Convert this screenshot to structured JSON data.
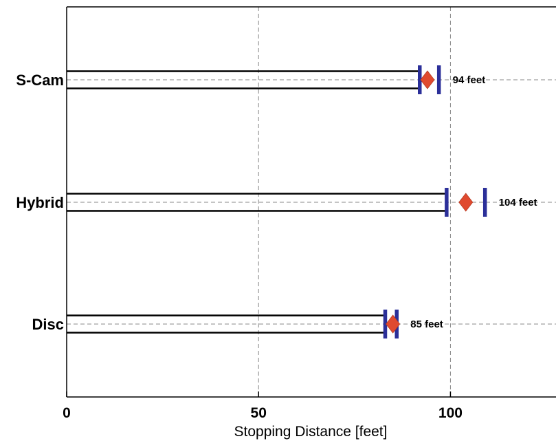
{
  "chart_data": {
    "type": "bar",
    "orientation": "horizontal",
    "categories": [
      "S-Cam",
      "Hybrid",
      "Disc"
    ],
    "values": [
      94,
      104,
      85
    ],
    "interval_low": [
      92,
      99,
      83
    ],
    "interval_high": [
      97,
      109,
      86
    ],
    "value_labels": [
      "94 feet",
      "104 feet",
      "85 feet"
    ],
    "xlabel": "Stopping Distance [feet]",
    "ylabel": "",
    "title": "",
    "xlim": [
      0,
      127.5
    ],
    "xticks": [
      0,
      50,
      100
    ],
    "xtick_labels": [
      "0",
      "50",
      "100"
    ],
    "grid": true,
    "legend": "none",
    "colors": {
      "bar_outline": "#000000",
      "interval_bars": "#2b2f99",
      "marker": "#e04a2f",
      "grid": "#888888"
    }
  }
}
